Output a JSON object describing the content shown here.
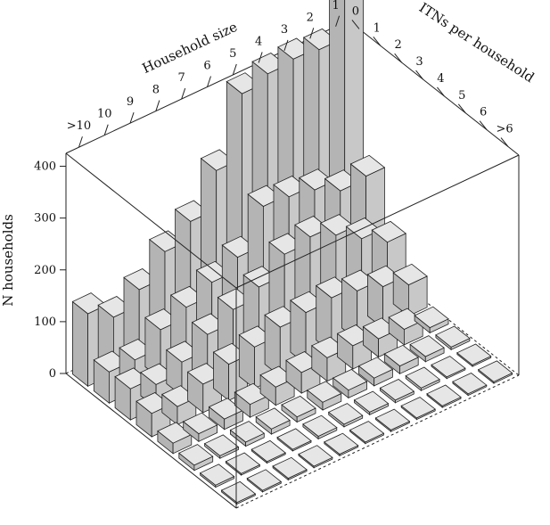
{
  "chart_data": {
    "type": "bar3d",
    "zlabel": "N households",
    "household_axis": {
      "label": "Household size",
      "ticks": [
        "1",
        "2",
        "3",
        "4",
        "5",
        "6",
        "7",
        "8",
        "9",
        "10",
        ">10"
      ]
    },
    "itn_axis": {
      "label": "ITNs per household",
      "ticks": [
        "0",
        "1",
        "2",
        "3",
        "4",
        "5",
        "6",
        ">6"
      ]
    },
    "z_ticks": [
      "0",
      "100",
      "200",
      "300",
      "400"
    ],
    "zlim": [
      0,
      400
    ],
    "bar_color": "#c8c8c8",
    "values": [
      [
        530,
        205,
        110,
        60,
        10,
        5,
        2,
        2
      ],
      [
        440,
        200,
        140,
        80,
        30,
        10,
        3,
        2
      ],
      [
        445,
        225,
        170,
        95,
        35,
        15,
        5,
        2
      ],
      [
        440,
        235,
        190,
        105,
        45,
        15,
        5,
        2
      ],
      [
        425,
        240,
        180,
        100,
        45,
        15,
        5,
        2
      ],
      [
        300,
        165,
        140,
        95,
        40,
        15,
        5,
        2
      ],
      [
        225,
        140,
        120,
        80,
        35,
        10,
        5,
        2
      ],
      [
        190,
        115,
        95,
        70,
        25,
        10,
        3,
        2
      ],
      [
        140,
        95,
        65,
        55,
        20,
        8,
        3,
        2
      ],
      [
        110,
        60,
        45,
        35,
        15,
        5,
        2,
        2
      ],
      [
        140,
        60,
        60,
        45,
        20,
        10,
        4,
        2
      ]
    ]
  }
}
